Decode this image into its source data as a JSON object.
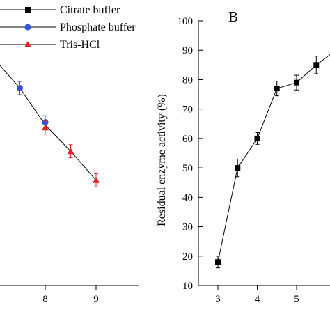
{
  "chart_data": [
    {
      "type": "line",
      "panel": "A",
      "x_ticks": [
        "8",
        "9"
      ],
      "legend": [
        {
          "label": "Citrate buffer",
          "marker": "square",
          "color": "#000000"
        },
        {
          "label": "Phosphate buffer",
          "marker": "circle",
          "color": "#3355dd"
        },
        {
          "label": "Tris-HCl",
          "marker": "triangle",
          "color": "#dd2222"
        }
      ],
      "series": [
        {
          "name": "Phosphate buffer",
          "color": "#3355dd",
          "marker": "circle",
          "points": [
            {
              "x": 7.5,
              "y": 85,
              "err": 2.5
            },
            {
              "x": 8.0,
              "y": 72,
              "err": 2.5
            }
          ]
        },
        {
          "name": "Tris-HCl",
          "color": "#dd2222",
          "marker": "triangle",
          "points": [
            {
              "x": 8.0,
              "y": 70,
              "err": 2.5
            },
            {
              "x": 8.5,
              "y": 61,
              "err": 2.5
            },
            {
              "x": 9.0,
              "y": 50,
              "err": 2.5
            }
          ]
        }
      ],
      "line_points": [
        {
          "x": 7.0,
          "y": 96
        },
        {
          "x": 7.5,
          "y": 85
        },
        {
          "x": 8.0,
          "y": 71
        },
        {
          "x": 8.5,
          "y": 61
        },
        {
          "x": 9.0,
          "y": 50
        }
      ]
    },
    {
      "type": "line",
      "panel": "B",
      "title": "B",
      "ylabel": "Residual enzyme activity (%)",
      "ylim": [
        10,
        100
      ],
      "y_ticks": [
        "10",
        "20",
        "30",
        "40",
        "50",
        "60",
        "70",
        "80",
        "90",
        "100"
      ],
      "x_ticks": [
        "3",
        "4",
        "5"
      ],
      "series": [
        {
          "name": "",
          "color": "#000000",
          "marker": "square",
          "points": [
            {
              "x": 3.0,
              "y": 18,
              "err": 2
            },
            {
              "x": 3.5,
              "y": 50,
              "err": 3
            },
            {
              "x": 4.0,
              "y": 60,
              "err": 2
            },
            {
              "x": 4.5,
              "y": 77,
              "err": 2.5
            },
            {
              "x": 5.0,
              "y": 79,
              "err": 2.5
            },
            {
              "x": 5.5,
              "y": 85,
              "err": 3
            },
            {
              "x": 6.0,
              "y": 90,
              "err": 0
            }
          ]
        }
      ]
    }
  ]
}
